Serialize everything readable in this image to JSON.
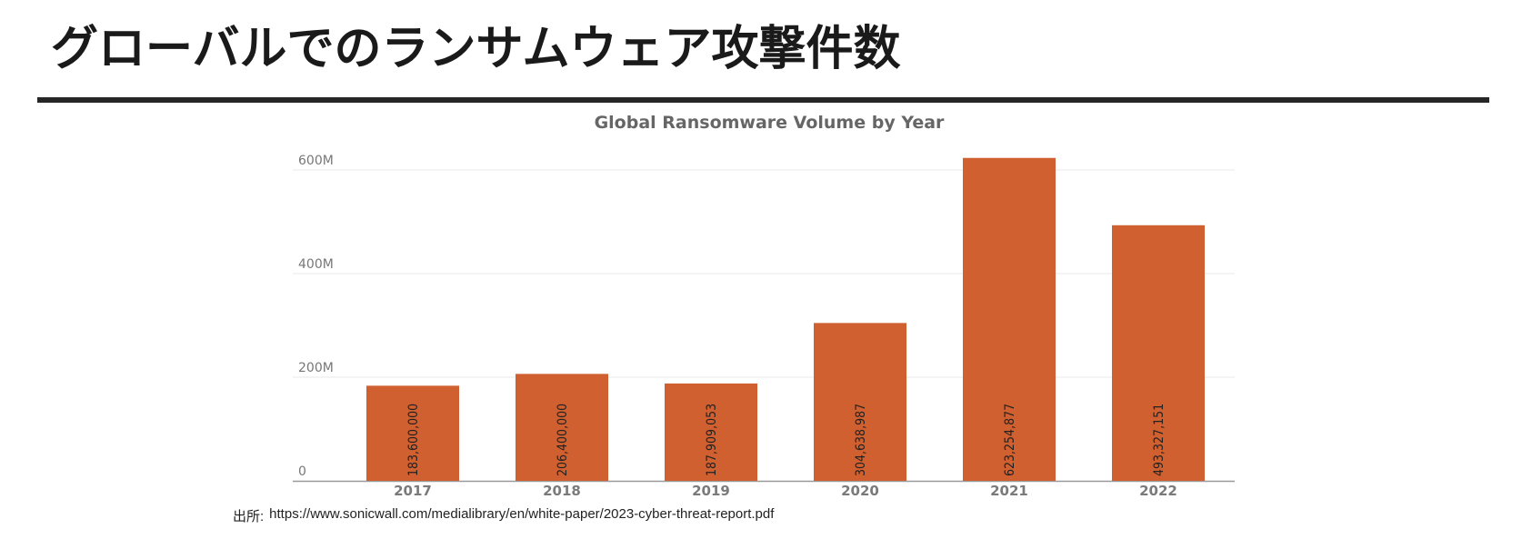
{
  "slide": {
    "title": "グローバルでのランサムウェア攻撃件数",
    "source_prefix": "出所:",
    "source_url": "https://www.sonicwall.com/medialibrary/en/white-paper/2023-cyber-threat-report.pdf"
  },
  "chart_data": {
    "type": "bar",
    "title": "Global Ransomware Volume by Year",
    "xlabel": "",
    "ylabel": "",
    "categories": [
      "2017",
      "2018",
      "2019",
      "2020",
      "2021",
      "2022"
    ],
    "values": [
      183600000,
      206400000,
      187909053,
      304638987,
      623254877,
      493327151
    ],
    "data_labels": [
      "183,600,000",
      "206,400,000",
      "187,909,053",
      "304,638,987",
      "623,254,877",
      "493,327,151"
    ],
    "y_ticks": [
      0,
      200000000,
      400000000,
      600000000
    ],
    "y_tick_labels": [
      "0",
      "200M",
      "400M",
      "600M"
    ],
    "ylim": [
      0,
      600000000
    ],
    "grid": true,
    "legend": "none",
    "bar_color": "#d06030",
    "data_label_orientation": "vertical"
  }
}
